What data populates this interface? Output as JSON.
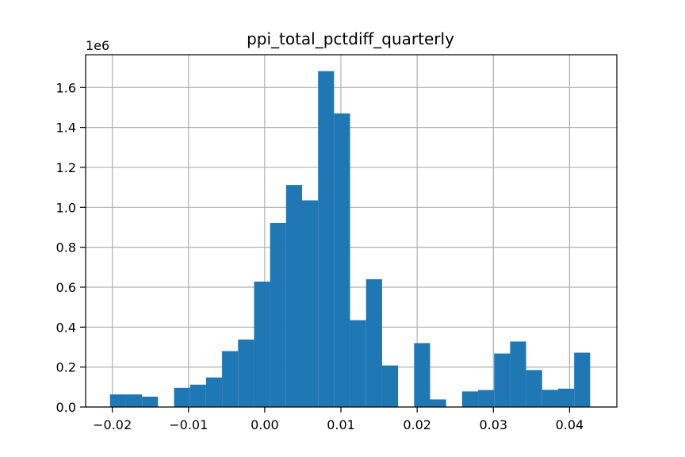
{
  "chart_data": {
    "type": "bar",
    "title": "ppi_total_pctdiff_quarterly",
    "xlabel": "",
    "ylabel": "",
    "y_offset_label": "1e6",
    "xlim": [
      -0.0235,
      0.0462
    ],
    "ylim": [
      0,
      1.764
    ],
    "x_ticks": [
      {
        "value": -0.02,
        "label": "−0.02"
      },
      {
        "value": -0.01,
        "label": "−0.01"
      },
      {
        "value": 0.0,
        "label": "0.00"
      },
      {
        "value": 0.01,
        "label": "0.01"
      },
      {
        "value": 0.02,
        "label": "0.02"
      },
      {
        "value": 0.03,
        "label": "0.03"
      },
      {
        "value": 0.04,
        "label": "0.04"
      }
    ],
    "y_ticks": [
      {
        "value": 0.0,
        "label": "0.0"
      },
      {
        "value": 0.2,
        "label": "0.2"
      },
      {
        "value": 0.4,
        "label": "0.4"
      },
      {
        "value": 0.6,
        "label": "0.6"
      },
      {
        "value": 0.8,
        "label": "0.8"
      },
      {
        "value": 1.0,
        "label": "1.0"
      },
      {
        "value": 1.2,
        "label": "1.2"
      },
      {
        "value": 1.4,
        "label": "1.4"
      },
      {
        "value": 1.6,
        "label": "1.6"
      }
    ],
    "grid": true,
    "bins": [
      {
        "x0": -0.0203,
        "x1": -0.0182,
        "value": 0.063
      },
      {
        "x0": -0.0182,
        "x1": -0.0161,
        "value": 0.063
      },
      {
        "x0": -0.0161,
        "x1": -0.014,
        "value": 0.052
      },
      {
        "x0": -0.014,
        "x1": -0.0119,
        "value": 0.0
      },
      {
        "x0": -0.0119,
        "x1": -0.0098,
        "value": 0.096
      },
      {
        "x0": -0.0098,
        "x1": -0.0077,
        "value": 0.112
      },
      {
        "x0": -0.0077,
        "x1": -0.0056,
        "value": 0.148
      },
      {
        "x0": -0.0056,
        "x1": -0.0035,
        "value": 0.28
      },
      {
        "x0": -0.0035,
        "x1": -0.0014,
        "value": 0.338
      },
      {
        "x0": -0.0014,
        "x1": 0.0007,
        "value": 0.628
      },
      {
        "x0": 0.0007,
        "x1": 0.0028,
        "value": 0.922
      },
      {
        "x0": 0.0028,
        "x1": 0.0049,
        "value": 1.112
      },
      {
        "x0": 0.0049,
        "x1": 0.007,
        "value": 1.035
      },
      {
        "x0": 0.007,
        "x1": 0.0091,
        "value": 1.682
      },
      {
        "x0": 0.0091,
        "x1": 0.0112,
        "value": 1.47
      },
      {
        "x0": 0.0112,
        "x1": 0.0133,
        "value": 0.435
      },
      {
        "x0": 0.0133,
        "x1": 0.0154,
        "value": 0.64
      },
      {
        "x0": 0.0154,
        "x1": 0.0175,
        "value": 0.208
      },
      {
        "x0": 0.0175,
        "x1": 0.0196,
        "value": 0.0
      },
      {
        "x0": 0.0196,
        "x1": 0.0217,
        "value": 0.32
      },
      {
        "x0": 0.0217,
        "x1": 0.0238,
        "value": 0.038
      },
      {
        "x0": 0.0238,
        "x1": 0.0259,
        "value": 0.0
      },
      {
        "x0": 0.0259,
        "x1": 0.028,
        "value": 0.078
      },
      {
        "x0": 0.028,
        "x1": 0.0301,
        "value": 0.085
      },
      {
        "x0": 0.0301,
        "x1": 0.0322,
        "value": 0.268
      },
      {
        "x0": 0.0322,
        "x1": 0.0343,
        "value": 0.328
      },
      {
        "x0": 0.0343,
        "x1": 0.0364,
        "value": 0.185
      },
      {
        "x0": 0.0364,
        "x1": 0.0385,
        "value": 0.086
      },
      {
        "x0": 0.0385,
        "x1": 0.0406,
        "value": 0.092
      },
      {
        "x0": 0.0406,
        "x1": 0.0427,
        "value": 0.272
      }
    ],
    "colors": {
      "bar": "#1f77b4",
      "grid": "#b0b0b0",
      "axes": "#000000"
    }
  }
}
